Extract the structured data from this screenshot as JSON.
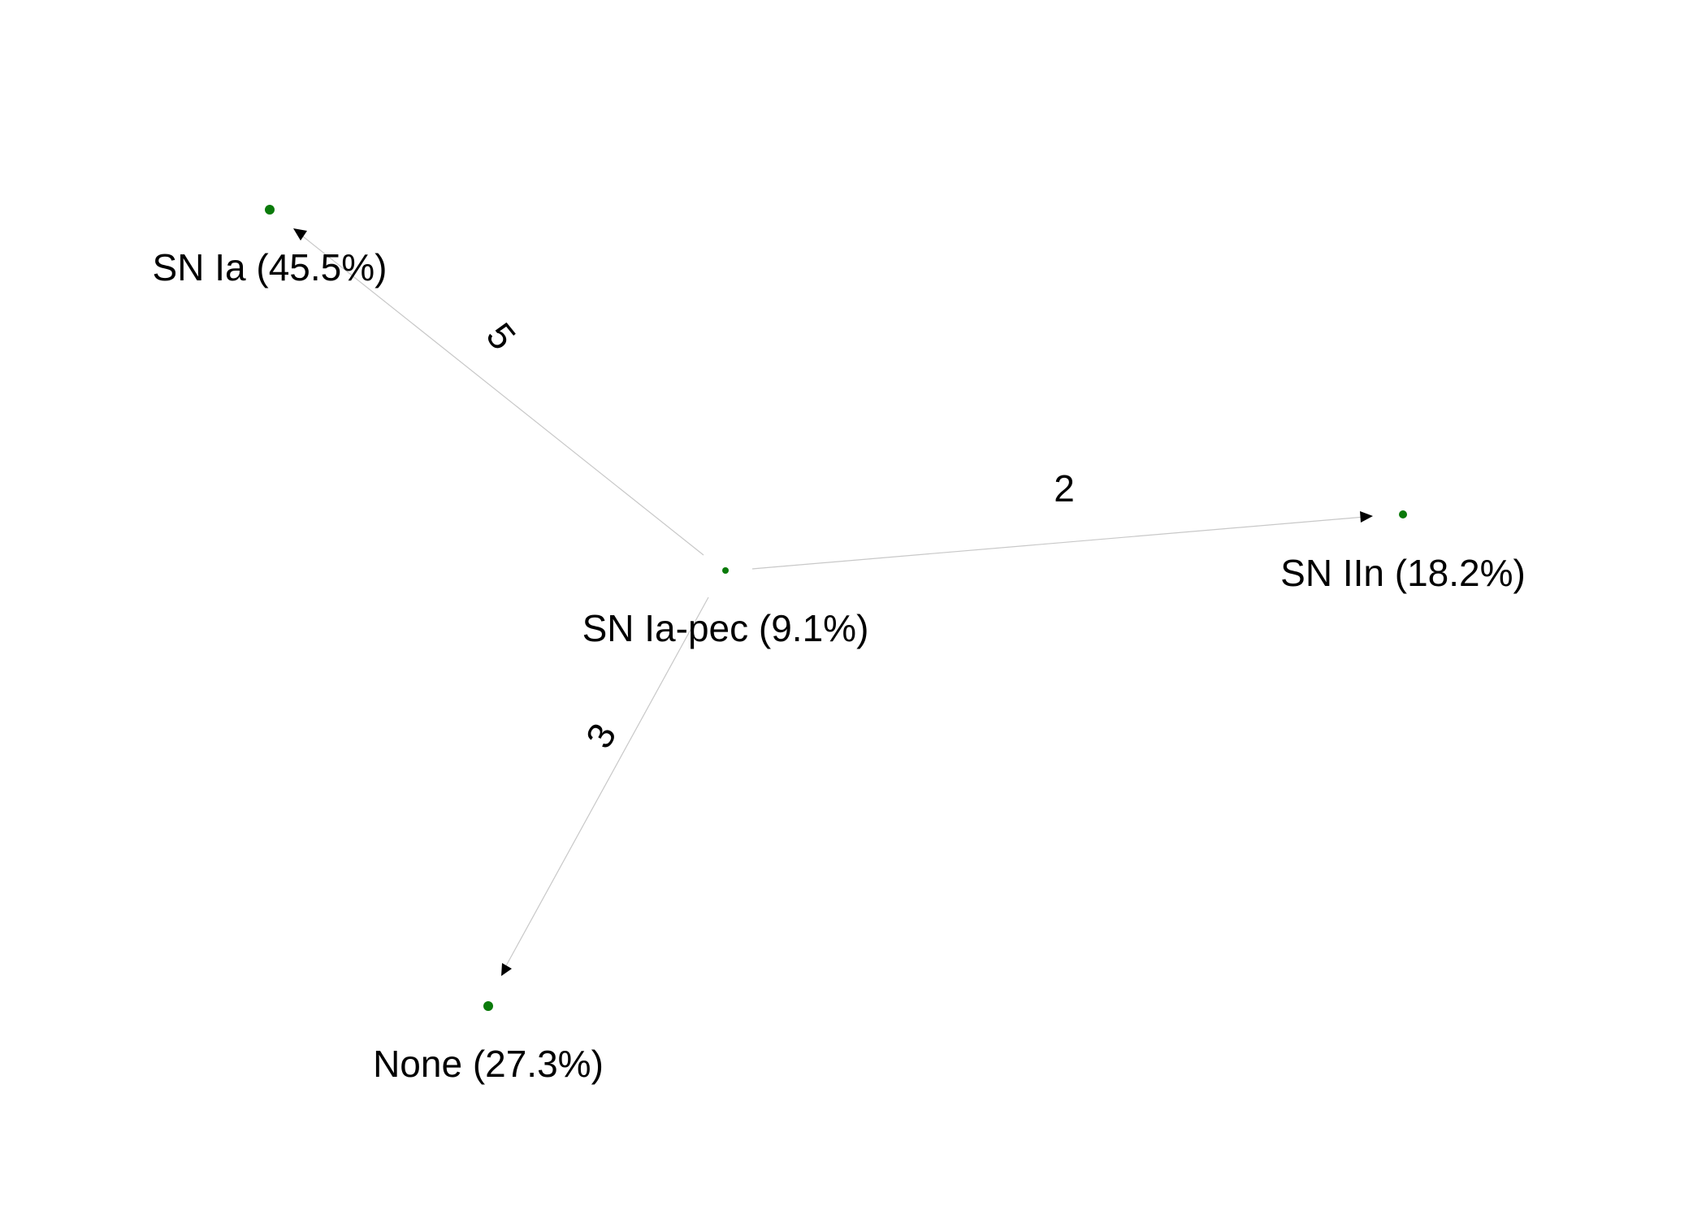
{
  "diagram": {
    "type": "directed-graph",
    "node_color": "#0a7a0a",
    "edge_color": "#c8c8c8",
    "arrow_color": "#000000",
    "nodes": [
      {
        "id": "sn-ia",
        "label": "SN Ia (45.5%)"
      },
      {
        "id": "sn-iin",
        "label": "SN IIn (18.2%)"
      },
      {
        "id": "sn-ia-pec",
        "label": "SN Ia-pec (9.1%)"
      },
      {
        "id": "none",
        "label": "None (27.3%)"
      }
    ],
    "edges": [
      {
        "from": "sn-ia-pec",
        "to": "sn-ia",
        "label": "5"
      },
      {
        "from": "sn-ia-pec",
        "to": "sn-iin",
        "label": "2"
      },
      {
        "from": "sn-ia-pec",
        "to": "none",
        "label": "3"
      }
    ]
  }
}
